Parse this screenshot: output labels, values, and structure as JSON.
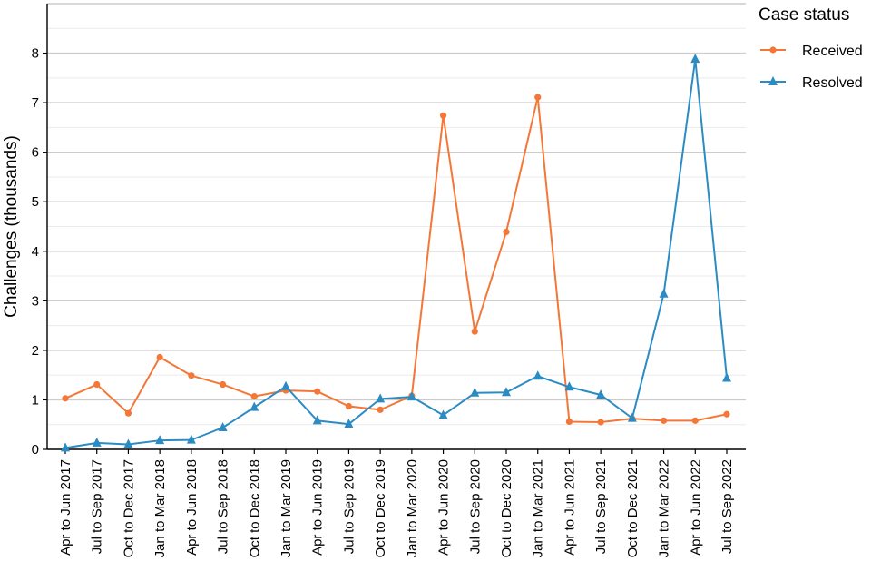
{
  "chart_data": {
    "type": "line",
    "ylabel": "Challenges (thousands)",
    "xlabel": "",
    "ylim": [
      0,
      9
    ],
    "yticks": [
      "0",
      "1",
      "2",
      "3",
      "4",
      "5",
      "6",
      "7",
      "8"
    ],
    "grid": true,
    "legend_title": "Case status",
    "legend_position": "top-right",
    "categories": [
      "Apr to Jun 2017",
      "Jul to Sep 2017",
      "Oct to Dec 2017",
      "Jan to Mar 2018",
      "Apr to Jun 2018",
      "Jul to Sep 2018",
      "Oct to Dec 2018",
      "Jan to Mar 2019",
      "Apr to Jun 2019",
      "Jul to Sep 2019",
      "Oct to Dec 2019",
      "Jan to Mar 2020",
      "Apr to Jun 2020",
      "Jul to Sep 2020",
      "Oct to Dec 2020",
      "Jan to Mar 2021",
      "Apr to Jun 2021",
      "Jul to Sep 2021",
      "Oct to Dec 2021",
      "Jan to Mar 2022",
      "Apr to Jun 2022",
      "Jul to Sep 2022"
    ],
    "series": [
      {
        "name": "Received",
        "color": "#f47738",
        "marker": "circle",
        "values": [
          1.03,
          1.31,
          0.73,
          1.86,
          1.49,
          1.31,
          1.07,
          1.19,
          1.17,
          0.87,
          0.8,
          1.08,
          6.74,
          2.38,
          4.39,
          7.11,
          0.56,
          0.55,
          0.62,
          0.58,
          0.58,
          0.71
        ]
      },
      {
        "name": "Resolved",
        "color": "#2b8cc4",
        "marker": "triangle",
        "values": [
          0.03,
          0.13,
          0.1,
          0.18,
          0.19,
          0.44,
          0.85,
          1.27,
          0.58,
          0.51,
          1.02,
          1.06,
          0.69,
          1.14,
          1.15,
          1.48,
          1.26,
          1.1,
          0.63,
          3.14,
          7.88,
          1.44
        ]
      }
    ]
  }
}
